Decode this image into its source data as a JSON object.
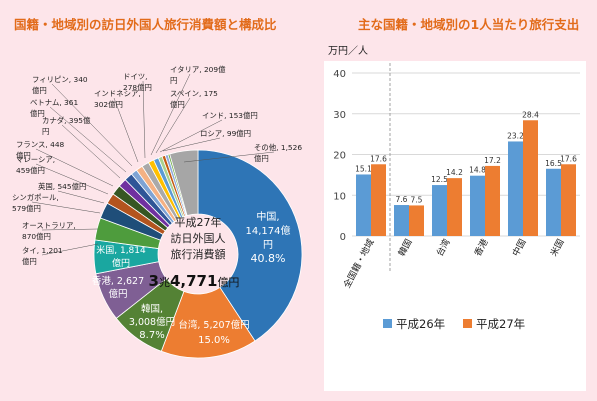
{
  "titles": {
    "left": "国籍・地域別の訪日外国人旅行消費額と構成比",
    "right": "主な国籍・地域別の1人当たり旅行支出"
  },
  "center": {
    "line1": "平成27年",
    "line2": "訪日外国人",
    "line3": "旅行消費額",
    "total_prefix": "3",
    "total_mid": "兆",
    "total_num": "4,771",
    "total_unit": "億円"
  },
  "chart_data": [
    {
      "type": "pie",
      "style": "donut",
      "unit": "億円",
      "slices": [
        {
          "label": "中国",
          "value": 14174,
          "pct": "40.8%",
          "color": "#2e75b6"
        },
        {
          "label": "台湾",
          "value": 5207,
          "pct": "15.0%",
          "color": "#ed7d31"
        },
        {
          "label": "韓国",
          "value": 3008,
          "pct": "8.7%",
          "color": "#548235"
        },
        {
          "label": "香港",
          "value": 2627,
          "color": "#7f5f94"
        },
        {
          "label": "米国",
          "value": 1814,
          "color": "#1aa7a0"
        },
        {
          "label": "タイ",
          "value": 1201,
          "color": "#4e9c3d"
        },
        {
          "label": "オーストラリア",
          "value": 870,
          "color": "#1f4e79"
        },
        {
          "label": "シンガポール",
          "value": 579,
          "color": "#b3541e"
        },
        {
          "label": "英国",
          "value": 545,
          "color": "#375623"
        },
        {
          "label": "マレーシア",
          "value": 459,
          "color": "#7030a0"
        },
        {
          "label": "フランス",
          "value": 448,
          "color": "#2f5597"
        },
        {
          "label": "フィリピン",
          "value": 340,
          "color": "#7ea3d4"
        },
        {
          "label": "ベトナム",
          "value": 361,
          "color": "#f4b183"
        },
        {
          "label": "カナダ",
          "value": 395,
          "color": "#a9a9a9"
        },
        {
          "label": "インドネシア",
          "value": 302,
          "color": "#ffc000"
        },
        {
          "label": "ドイツ",
          "value": 278,
          "color": "#5b9bd5"
        },
        {
          "label": "イタリア",
          "value": 209,
          "color": "#a9d18e"
        },
        {
          "label": "スペイン",
          "value": 175,
          "color": "#c55a11"
        },
        {
          "label": "インド",
          "value": 153,
          "color": "#8faadc"
        },
        {
          "label": "ロシア",
          "value": 99,
          "color": "#70ad47"
        },
        {
          "label": "その他",
          "value": 1526,
          "color": "#a6a6a6"
        }
      ],
      "inside_labels": [
        {
          "l1": "中国,",
          "l2": "14,174億",
          "l3": "円",
          "l4": "40.8%"
        },
        {
          "l1": "台湾, 5,207億円",
          "l2": "15.0%"
        },
        {
          "l1": "韓国,",
          "l2": "3,008億円",
          "l3": "8.7%"
        },
        {
          "l1": "香港, 2,627",
          "l2": "億円"
        },
        {
          "l1": "米国, 1,814",
          "l2": "億円"
        }
      ],
      "outside_labels": [
        {
          "l1": "タイ, 1,201",
          "l2": "億円"
        },
        {
          "l1": "オーストラリア,",
          "l2": "870億円"
        },
        {
          "l1": "シンガポール,",
          "l2": "579億円"
        },
        {
          "l1": "英国, 545億円"
        },
        {
          "l1": "マレーシア,",
          "l2": "459億円"
        },
        {
          "l1": "フランス, 448",
          "l2": "億円"
        },
        {
          "l1": "カナダ, 395億",
          "l2": "円"
        },
        {
          "l1": "ベトナム, 361",
          "l2": "億円"
        },
        {
          "l1": "フィリピン, 340",
          "l2": "億円"
        },
        {
          "l1": "インドネシア,",
          "l2": "302億円"
        },
        {
          "l1": "ドイツ,",
          "l2": "278億円"
        },
        {
          "l1": "イタリア, 209億",
          "l2": "円"
        },
        {
          "l1": "スペイン, 175",
          "l2": "億円"
        },
        {
          "l1": "インド, 153億円"
        },
        {
          "l1": "ロシア, 99億円"
        },
        {
          "l1": "その他, 1,526",
          "l2": "億円"
        }
      ]
    },
    {
      "type": "bar",
      "categories": [
        "全国籍・地域",
        "韓国",
        "台湾",
        "香港",
        "中国",
        "米国"
      ],
      "series": [
        {
          "name": "平成26年",
          "values": [
            15.1,
            7.6,
            12.5,
            14.8,
            23.2,
            16.5
          ],
          "color": "#5b9bd5"
        },
        {
          "name": "平成27年",
          "values": [
            17.6,
            7.5,
            14.2,
            17.2,
            28.4,
            17.6
          ],
          "color": "#ed7d31"
        }
      ],
      "ylabel": "万円／人",
      "ylim": [
        0,
        40
      ],
      "yticks": [
        0,
        10,
        20,
        30,
        40
      ],
      "grid": true,
      "legend": "bottom"
    }
  ]
}
